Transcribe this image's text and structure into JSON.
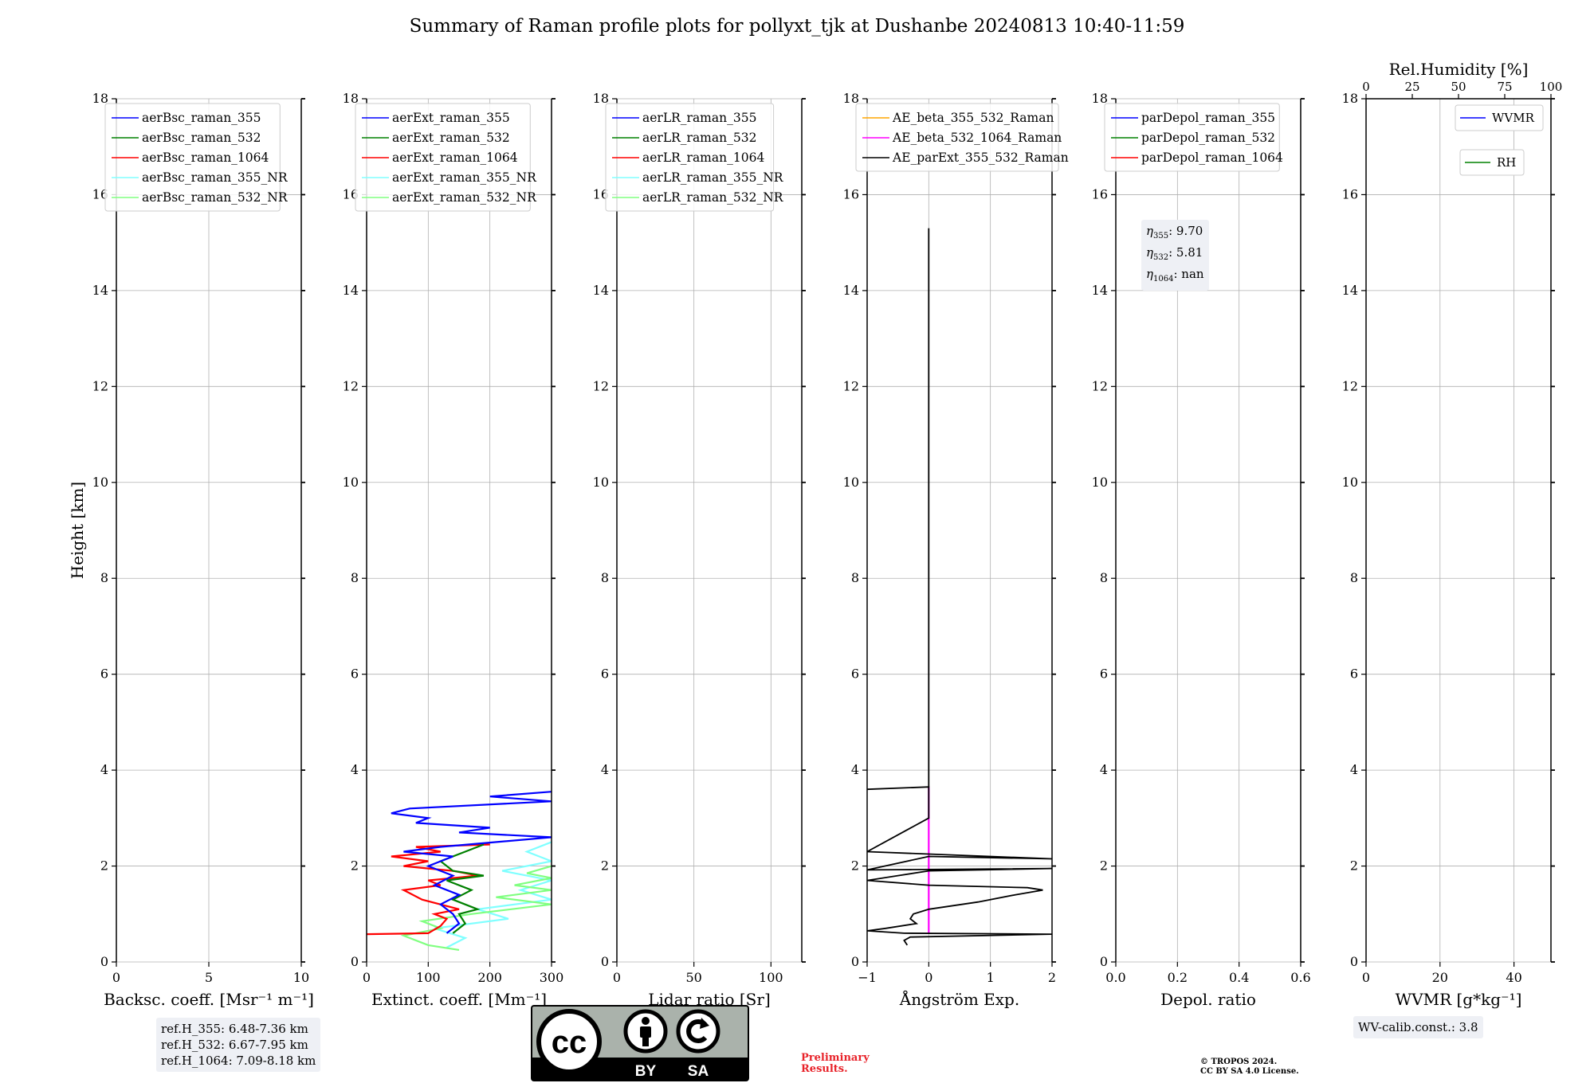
{
  "figure": {
    "title": "Summary of Raman profile plots for pollyxt_tjk at Dushanbe 20240813 10:40-11:59",
    "height_label": "Height [km]",
    "ref_heights": [
      "ref.H_355: 6.48-7.36 km",
      "ref.H_532: 6.67-7.95 km",
      "ref.H_1064: 7.09-8.18 km"
    ],
    "eta": [
      "9.70",
      "5.81",
      "nan"
    ],
    "wv_calib": "WV-calib.const.: 3.8",
    "preliminary": [
      "Preliminary",
      "Results."
    ],
    "copyright": [
      "© TROPOS 2024.",
      "CC BY SA 4.0 License."
    ],
    "license_badge": {
      "mark": "cc",
      "by": "BY",
      "sa": "SA"
    }
  },
  "colors": {
    "blue": "#0000ff",
    "green": "#008000",
    "red": "#ff0000",
    "cyan": "#80ffff",
    "lightgreen": "#80ff80",
    "orange": "#ffa500",
    "magenta": "#ff00ff",
    "black": "#000000",
    "grid": "#b0b0b0"
  },
  "chart_data": [
    {
      "type": "line",
      "id": "bsc",
      "xlabel": "Backsc. coeff. [Msr⁻¹ m⁻¹]",
      "ylabel": "Height [km]",
      "xlim": [
        0,
        10
      ],
      "ylim": [
        0,
        18
      ],
      "xticks": [
        0,
        5,
        10
      ],
      "yticks": [
        0,
        2,
        4,
        6,
        8,
        10,
        12,
        14,
        16,
        18
      ],
      "legend": {
        "placement": "top-left",
        "entries": [
          {
            "label": "aerBsc_raman_355",
            "color": "blue"
          },
          {
            "label": "aerBsc_raman_532",
            "color": "green"
          },
          {
            "label": "aerBsc_raman_1064",
            "color": "red"
          },
          {
            "label": "aerBsc_raman_355_NR",
            "color": "cyan"
          },
          {
            "label": "aerBsc_raman_532_NR",
            "color": "lightgreen"
          }
        ]
      },
      "series": []
    },
    {
      "type": "line",
      "id": "ext",
      "xlabel": "Extinct. coeff. [Mm⁻¹]",
      "ylabel": "",
      "xlim": [
        0,
        300
      ],
      "ylim": [
        0,
        18
      ],
      "xticks": [
        0,
        100,
        200,
        300
      ],
      "yticks": [
        0,
        2,
        4,
        6,
        8,
        10,
        12,
        14,
        16,
        18
      ],
      "legend": {
        "placement": "top-left",
        "entries": [
          {
            "label": "aerExt_raman_355",
            "color": "blue"
          },
          {
            "label": "aerExt_raman_532",
            "color": "green"
          },
          {
            "label": "aerExt_raman_1064",
            "color": "red"
          },
          {
            "label": "aerExt_raman_355_NR",
            "color": "cyan"
          },
          {
            "label": "aerExt_raman_532_NR",
            "color": "lightgreen"
          }
        ]
      },
      "series": [
        {
          "name": "aerExt_raman_355_NR",
          "color": "cyan",
          "points": [
            [
              130,
              0.3
            ],
            [
              160,
              0.5
            ],
            [
              110,
              0.7
            ],
            [
              230,
              0.9
            ],
            [
              180,
              1.1
            ],
            [
              300,
              1.3
            ],
            [
              250,
              1.5
            ],
            [
              300,
              1.7
            ],
            [
              220,
              1.9
            ],
            [
              300,
              2.1
            ],
            [
              260,
              2.3
            ],
            [
              300,
              2.5
            ]
          ]
        },
        {
          "name": "aerExt_raman_532_NR",
          "color": "lightgreen",
          "points": [
            [
              150,
              0.25
            ],
            [
              100,
              0.35
            ],
            [
              60,
              0.55
            ],
            [
              120,
              0.7
            ],
            [
              90,
              0.85
            ],
            [
              170,
              1.0
            ],
            [
              300,
              1.2
            ],
            [
              210,
              1.35
            ],
            [
              300,
              1.5
            ],
            [
              240,
              1.6
            ],
            [
              300,
              1.75
            ],
            [
              260,
              1.85
            ],
            [
              300,
              2.0
            ]
          ]
        },
        {
          "name": "aerExt_raman_1064",
          "color": "red",
          "points": [
            [
              0,
              0.58
            ],
            [
              100,
              0.6
            ],
            [
              120,
              0.75
            ],
            [
              130,
              0.9
            ],
            [
              110,
              1.0
            ],
            [
              150,
              1.1
            ],
            [
              90,
              1.3
            ],
            [
              60,
              1.5
            ],
            [
              120,
              1.6
            ],
            [
              100,
              1.7
            ],
            [
              180,
              1.8
            ],
            [
              140,
              1.9
            ],
            [
              60,
              2.0
            ],
            [
              100,
              2.1
            ],
            [
              40,
              2.2
            ],
            [
              120,
              2.3
            ],
            [
              80,
              2.4
            ],
            [
              200,
              2.45
            ]
          ]
        },
        {
          "name": "aerExt_raman_532",
          "color": "green",
          "points": [
            [
              140,
              0.6
            ],
            [
              160,
              0.8
            ],
            [
              150,
              1.0
            ],
            [
              180,
              1.1
            ],
            [
              140,
              1.3
            ],
            [
              170,
              1.5
            ],
            [
              130,
              1.7
            ],
            [
              190,
              1.8
            ],
            [
              140,
              1.9
            ],
            [
              120,
              2.1
            ],
            [
              160,
              2.3
            ],
            [
              190,
              2.45
            ]
          ]
        },
        {
          "name": "aerExt_raman_355",
          "color": "blue",
          "points": [
            [
              130,
              0.6
            ],
            [
              150,
              0.8
            ],
            [
              140,
              1.0
            ],
            [
              120,
              1.2
            ],
            [
              150,
              1.4
            ],
            [
              110,
              1.6
            ],
            [
              140,
              1.8
            ],
            [
              100,
              2.0
            ],
            [
              140,
              2.2
            ],
            [
              60,
              2.3
            ],
            [
              120,
              2.4
            ],
            [
              300,
              2.6
            ],
            [
              150,
              2.7
            ],
            [
              200,
              2.8
            ],
            [
              80,
              2.9
            ],
            [
              100,
              3.0
            ],
            [
              40,
              3.1
            ],
            [
              70,
              3.2
            ],
            [
              300,
              3.35
            ],
            [
              200,
              3.45
            ],
            [
              300,
              3.55
            ]
          ]
        }
      ]
    },
    {
      "type": "line",
      "id": "lr",
      "xlabel": "Lidar ratio [Sr]",
      "ylabel": "",
      "xlim": [
        0,
        120
      ],
      "ylim": [
        0,
        18
      ],
      "xticks": [
        0,
        50,
        100
      ],
      "yticks": [
        0,
        2,
        4,
        6,
        8,
        10,
        12,
        14,
        16,
        18
      ],
      "legend": {
        "placement": "top-left",
        "entries": [
          {
            "label": "aerLR_raman_355",
            "color": "blue"
          },
          {
            "label": "aerLR_raman_532",
            "color": "green"
          },
          {
            "label": "aerLR_raman_1064",
            "color": "red"
          },
          {
            "label": "aerLR_raman_355_NR",
            "color": "cyan"
          },
          {
            "label": "aerLR_raman_532_NR",
            "color": "lightgreen"
          }
        ]
      },
      "series": []
    },
    {
      "type": "line",
      "id": "ae",
      "xlabel": "Ångström Exp.",
      "ylabel": "",
      "xlim": [
        -1,
        2
      ],
      "ylim": [
        0,
        18
      ],
      "xticks": [
        -1,
        0,
        1,
        2
      ],
      "yticks": [
        0,
        2,
        4,
        6,
        8,
        10,
        12,
        14,
        16,
        18
      ],
      "legend": {
        "placement": "top-left",
        "entries": [
          {
            "label": "AE_beta_355_532_Raman",
            "color": "orange"
          },
          {
            "label": "AE_beta_532_1064_Raman",
            "color": "magenta"
          },
          {
            "label": "AE_parExt_355_532_Raman",
            "color": "black"
          }
        ]
      },
      "series": [
        {
          "name": "AE_beta_532_1064_Raman",
          "color": "magenta",
          "points": [
            [
              0,
              0.6
            ],
            [
              0,
              3.65
            ]
          ]
        },
        {
          "name": "AE_parExt_355_532_Raman",
          "color": "black",
          "points": [
            [
              -0.35,
              0.35
            ],
            [
              -0.4,
              0.45
            ],
            [
              -0.3,
              0.52
            ],
            [
              2.0,
              0.58
            ],
            [
              -0.4,
              0.6
            ],
            [
              -1.0,
              0.65
            ],
            [
              -0.7,
              0.7
            ],
            [
              -0.2,
              0.8
            ],
            [
              -0.3,
              0.9
            ],
            [
              -0.25,
              1.0
            ],
            [
              0,
              1.1
            ],
            [
              0.8,
              1.25
            ],
            [
              1.4,
              1.4
            ],
            [
              1.85,
              1.5
            ],
            [
              1.6,
              1.55
            ],
            [
              0,
              1.6
            ],
            [
              -1.0,
              1.7
            ],
            [
              -0.5,
              1.8
            ],
            [
              0,
              1.9
            ],
            [
              2.0,
              1.95
            ],
            [
              -1.0,
              1.92
            ],
            [
              0,
              2.2
            ],
            [
              2.0,
              2.15
            ],
            [
              0,
              2.25
            ],
            [
              -1.0,
              2.3
            ],
            [
              0,
              3.0
            ],
            [
              0,
              3.65
            ],
            [
              -1.0,
              3.6
            ]
          ]
        },
        {
          "name": "AE_parExt_355_532_Raman_upper",
          "color": "black",
          "points": [
            [
              0,
              3.65
            ],
            [
              0,
              15.3
            ]
          ]
        }
      ]
    },
    {
      "type": "line",
      "id": "depol",
      "xlabel": "Depol. ratio",
      "ylabel": "",
      "xlim": [
        0,
        0.6
      ],
      "ylim": [
        0,
        18
      ],
      "xticks": [
        0.0,
        0.2,
        0.4,
        0.6
      ],
      "yticks": [
        0,
        2,
        4,
        6,
        8,
        10,
        12,
        14,
        16,
        18
      ],
      "legend": {
        "placement": "top-left",
        "entries": [
          {
            "label": "parDepol_raman_355",
            "color": "blue"
          },
          {
            "label": "parDepol_raman_532",
            "color": "green"
          },
          {
            "label": "parDepol_raman_1064",
            "color": "red"
          }
        ]
      },
      "series": []
    },
    {
      "type": "line",
      "id": "wv",
      "xlabel": "WVMR [g*kg⁻¹]",
      "ylabel": "",
      "xlim": [
        0,
        50
      ],
      "ylim": [
        0,
        18
      ],
      "xticks": [
        0,
        20,
        40
      ],
      "yticks": [
        0,
        2,
        4,
        6,
        8,
        10,
        12,
        14,
        16,
        18
      ],
      "top_axis": {
        "label": "Rel.Humidity [%]",
        "xlim": [
          0,
          100
        ],
        "xticks": [
          0,
          25,
          50,
          75,
          100
        ]
      },
      "legend": {
        "placement": "top-right",
        "entries": [
          {
            "label": "WVMR",
            "color": "blue"
          },
          {
            "label": "RH",
            "color": "green"
          }
        ]
      },
      "series": []
    }
  ]
}
